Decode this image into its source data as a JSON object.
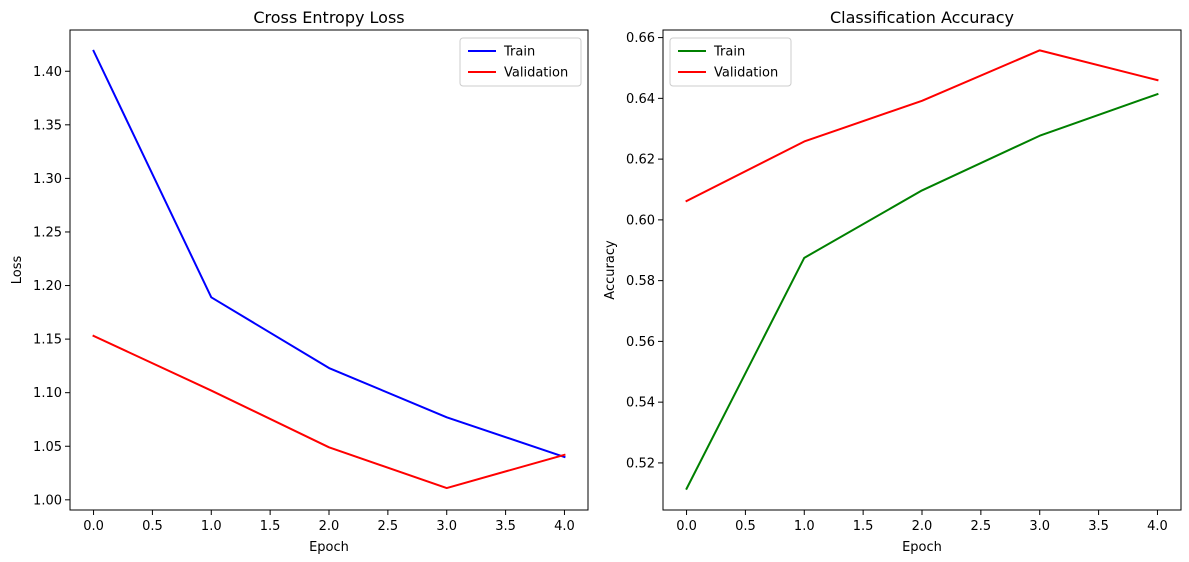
{
  "chart_data": [
    {
      "type": "line",
      "title": "Cross Entropy Loss",
      "xlabel": "Epoch",
      "ylabel": "Loss",
      "x": [
        0,
        1,
        2,
        3,
        4
      ],
      "xlim": [
        -0.2,
        4.2
      ],
      "ylim": [
        0.9905,
        1.4385
      ],
      "xticks": [
        "0.0",
        "0.5",
        "1.0",
        "1.5",
        "2.0",
        "2.5",
        "3.0",
        "3.5",
        "4.0"
      ],
      "yticks": [
        "1.00",
        "1.05",
        "1.10",
        "1.15",
        "1.20",
        "1.25",
        "1.30",
        "1.35",
        "1.40"
      ],
      "legend_position": "top-right",
      "series": [
        {
          "name": "Train",
          "color": "#0000ff",
          "values": [
            1.419,
            1.189,
            1.123,
            1.077,
            1.04
          ]
        },
        {
          "name": "Validation",
          "color": "#ff0000",
          "values": [
            1.153,
            1.102,
            1.049,
            1.011,
            1.042
          ]
        }
      ]
    },
    {
      "type": "line",
      "title": "Classification Accuracy",
      "xlabel": "Epoch",
      "ylabel": "Accuracy",
      "x": [
        0,
        1,
        2,
        3,
        4
      ],
      "xlim": [
        -0.2,
        4.2
      ],
      "ylim": [
        0.5045,
        0.6625
      ],
      "xticks": [
        "0.0",
        "0.5",
        "1.0",
        "1.5",
        "2.0",
        "2.5",
        "3.0",
        "3.5",
        "4.0"
      ],
      "yticks": [
        "0.52",
        "0.54",
        "0.56",
        "0.58",
        "0.60",
        "0.62",
        "0.64",
        "0.66"
      ],
      "legend_position": "top-left",
      "series": [
        {
          "name": "Train",
          "color": "#008000",
          "values": [
            0.5115,
            0.5875,
            0.6097,
            0.6277,
            0.6414
          ]
        },
        {
          "name": "Validation",
          "color": "#ff0000",
          "values": [
            0.6062,
            0.6258,
            0.6392,
            0.6558,
            0.646
          ]
        }
      ]
    }
  ]
}
